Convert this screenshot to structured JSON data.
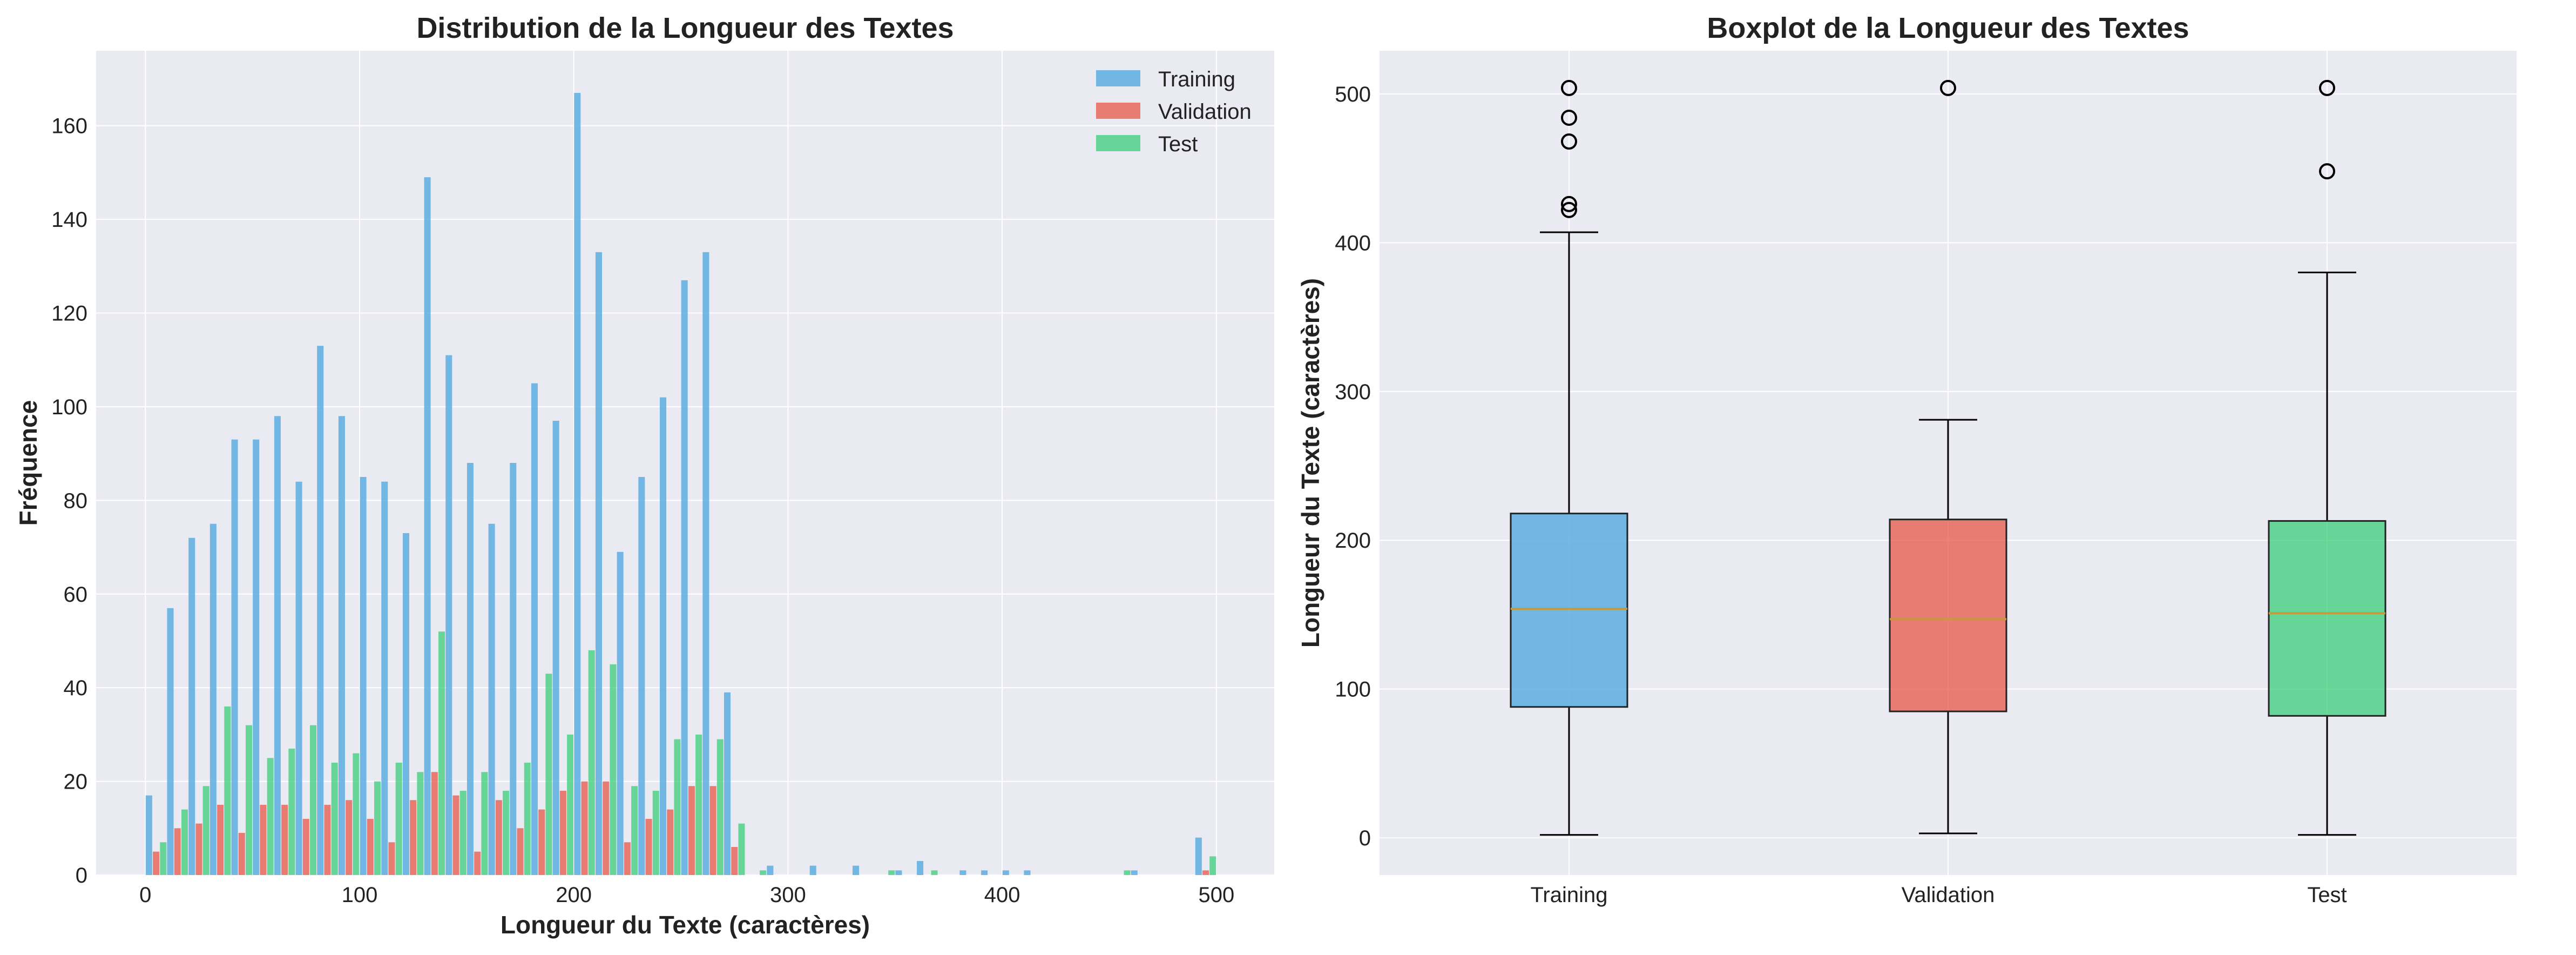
{
  "colors": {
    "training": "#5dade2",
    "validation": "#e74c3c",
    "test": "#2ecc71",
    "median": "#c59a3c",
    "plot_background": "#eaeaf2",
    "grid": "#ffffff"
  },
  "chart_data": [
    {
      "type": "bar",
      "title": "Distribution de la Longueur des Textes",
      "xlabel": "Longueur du Texte (caractères)",
      "ylabel": "Fréquence",
      "xlim": [
        -23,
        527
      ],
      "ylim": [
        0,
        176
      ],
      "xticks": [
        0,
        100,
        200,
        300,
        400,
        500
      ],
      "yticks": [
        0,
        20,
        40,
        60,
        80,
        100,
        120,
        140,
        160
      ],
      "grid": true,
      "legend_position": "top-right",
      "bin_width": 10,
      "x": [
        5,
        15,
        25,
        35,
        45,
        55,
        65,
        75,
        85,
        95,
        105,
        115,
        125,
        135,
        145,
        155,
        165,
        175,
        185,
        195,
        205,
        215,
        225,
        235,
        245,
        255,
        265,
        275,
        285,
        295,
        305,
        315,
        325,
        335,
        345,
        355,
        365,
        375,
        385,
        395,
        405,
        415,
        425,
        435,
        445,
        455,
        465,
        475,
        485,
        495
      ],
      "series": [
        {
          "name": "Training",
          "values": [
            17,
            57,
            72,
            75,
            93,
            93,
            98,
            84,
            113,
            98,
            85,
            84,
            73,
            149,
            111,
            88,
            75,
            88,
            105,
            97,
            167,
            133,
            69,
            85,
            102,
            127,
            133,
            39,
            0,
            2,
            0,
            2,
            0,
            2,
            0,
            1,
            3,
            0,
            1,
            1,
            1,
            1,
            0,
            0,
            0,
            0,
            1,
            0,
            0,
            8
          ]
        },
        {
          "name": "Validation",
          "values": [
            5,
            10,
            11,
            15,
            9,
            15,
            15,
            12,
            15,
            16,
            12,
            7,
            16,
            22,
            17,
            5,
            16,
            10,
            14,
            18,
            20,
            20,
            7,
            12,
            14,
            19,
            19,
            6,
            0,
            0,
            0,
            0,
            0,
            0,
            0,
            0,
            0,
            0,
            0,
            0,
            0,
            0,
            0,
            0,
            0,
            0,
            0,
            0,
            0,
            1
          ]
        },
        {
          "name": "Test",
          "values": [
            7,
            14,
            19,
            36,
            32,
            25,
            27,
            32,
            24,
            26,
            20,
            24,
            22,
            52,
            18,
            22,
            18,
            24,
            43,
            30,
            48,
            45,
            19,
            18,
            29,
            30,
            29,
            11,
            1,
            0,
            0,
            0,
            0,
            0,
            1,
            0,
            1,
            0,
            0,
            0,
            0,
            0,
            0,
            0,
            0,
            1,
            0,
            0,
            0,
            4
          ]
        }
      ]
    },
    {
      "type": "box",
      "title": "Boxplot de la Longueur des Textes",
      "xlabel": "",
      "ylabel": "Longueur du Texte (caractères)",
      "ylim": [
        -25,
        529
      ],
      "yticks": [
        0,
        100,
        200,
        300,
        400,
        500
      ],
      "grid": true,
      "categories": [
        "Training",
        "Validation",
        "Test"
      ],
      "boxes": [
        {
          "name": "Training",
          "whisker_low": 2,
          "q1": 88,
          "median": 154,
          "q3": 218,
          "whisker_high": 407,
          "outliers": [
            422,
            426,
            468,
            484,
            504
          ]
        },
        {
          "name": "Validation",
          "whisker_low": 3,
          "q1": 85,
          "median": 147,
          "q3": 214,
          "whisker_high": 281,
          "outliers": [
            504
          ]
        },
        {
          "name": "Test",
          "whisker_low": 2,
          "q1": 82,
          "median": 151,
          "q3": 213,
          "whisker_high": 380,
          "outliers": [
            448,
            504
          ]
        }
      ]
    }
  ]
}
